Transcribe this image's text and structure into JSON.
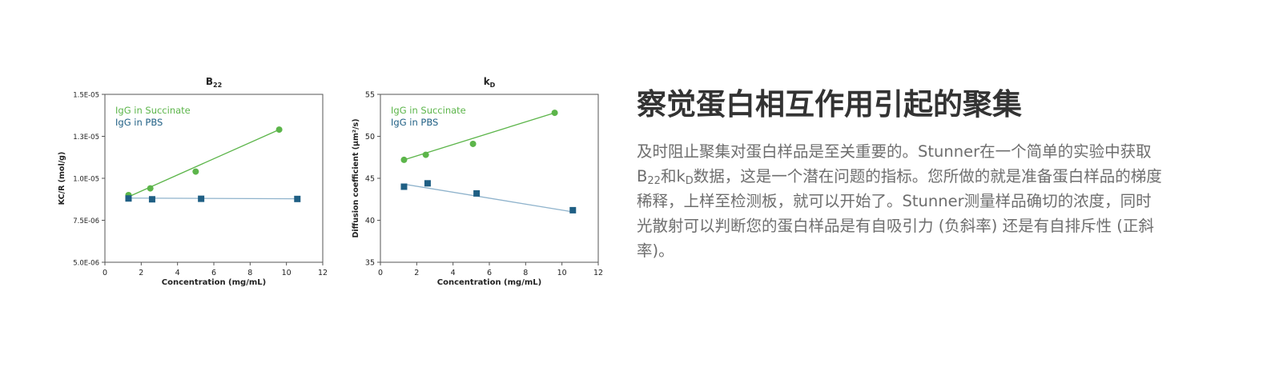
{
  "chart_data": [
    {
      "type": "scatter",
      "title": "B",
      "title_sub": "22",
      "xlabel": "Concentration (mg/mL)",
      "ylabel": "KC/R (mol/g)",
      "xlim": [
        0,
        12
      ],
      "ylim": [
        5e-06,
        1.5e-05
      ],
      "x_ticks": [
        0,
        2,
        4,
        6,
        8,
        10,
        12
      ],
      "x_tick_labels": [
        "0",
        "2",
        "4",
        "6",
        "8",
        "10",
        "12"
      ],
      "y_ticks": [
        5e-06,
        7.5e-06,
        1e-05,
        1.25e-05,
        1.5e-05
      ],
      "y_tick_labels": [
        "5.0E-06",
        "7.5E-06",
        "1.0E-05",
        "1.3E-05",
        "1.5E-05"
      ],
      "legend_position": "top-left",
      "series": [
        {
          "name": "IgG in Succinate",
          "color": "#5cb54a",
          "marker": "circle",
          "x": [
            1.3,
            2.5,
            5.0,
            9.6
          ],
          "y": [
            9e-06,
            9.4e-06,
            1.04e-05,
            1.29e-05
          ],
          "fit": [
            [
              1.3,
              8.9e-06
            ],
            [
              9.6,
              1.29e-05
            ]
          ]
        },
        {
          "name": "IgG in PBS",
          "color": "#1f5f84",
          "marker": "square",
          "x": [
            1.3,
            2.6,
            5.3,
            10.6
          ],
          "y": [
            8.8e-06,
            8.75e-06,
            8.78e-06,
            8.77e-06
          ],
          "fit": [
            [
              1.3,
              8.82e-06
            ],
            [
              10.6,
              8.78e-06
            ]
          ]
        }
      ]
    },
    {
      "type": "scatter",
      "title": "k",
      "title_sub": "D",
      "xlabel": "Concentration (mg/mL)",
      "ylabel": "Diffusion coefficient (µm²/s)",
      "xlim": [
        0,
        12
      ],
      "ylim": [
        35,
        55
      ],
      "x_ticks": [
        0,
        2,
        4,
        6,
        8,
        10,
        12
      ],
      "x_tick_labels": [
        "0",
        "2",
        "4",
        "6",
        "8",
        "10",
        "12"
      ],
      "y_ticks": [
        35,
        40,
        45,
        50,
        55
      ],
      "y_tick_labels": [
        "35",
        "40",
        "45",
        "50",
        "55"
      ],
      "legend_position": "top-left",
      "series": [
        {
          "name": "IgG in Succinate",
          "color": "#5cb54a",
          "marker": "circle",
          "x": [
            1.3,
            2.5,
            5.1,
            9.6
          ],
          "y": [
            47.2,
            47.8,
            49.1,
            52.8
          ],
          "fit": [
            [
              1.3,
              47.2
            ],
            [
              9.6,
              52.8
            ]
          ]
        },
        {
          "name": "IgG in PBS",
          "color": "#1f5f84",
          "marker": "square",
          "x": [
            1.3,
            2.6,
            5.3,
            10.6
          ],
          "y": [
            44.0,
            44.4,
            43.2,
            41.2
          ],
          "fit": [
            [
              1.3,
              44.3
            ],
            [
              10.6,
              41.0
            ]
          ]
        }
      ]
    }
  ],
  "section": {
    "heading": "察觉蛋白相互作用引起的聚集",
    "body_p1": "及时阻止聚集对蛋白样品是至关重要的。Stunner在一个简单的实验中获取B",
    "body_sub1": "22",
    "body_p2": "和k",
    "body_sub2": "D",
    "body_p3": "数据，这是一个潜在问题的指标。您所做的就是准备蛋白样品的梯度稀释，上样至检测板，就可以开始了。Stunner测量样品确切的浓度，同时光散射可以判断您的蛋白样品是有自吸引力 (负斜率) 还是有自排斥性 (正斜率)。"
  }
}
